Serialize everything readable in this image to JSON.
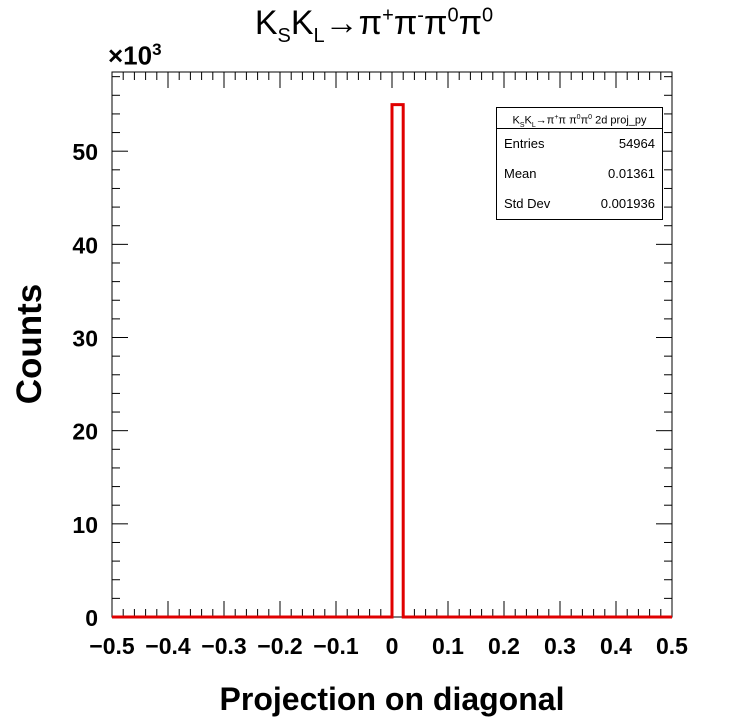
{
  "chart_data": {
    "type": "bar",
    "title": "K_S K_L → π⁺π⁻π⁰π⁰",
    "title_parts": {
      "k": "K",
      "s": "S",
      "l": "L",
      "rest": "→π",
      "plus": "+",
      "pi2": "π",
      "minus": "-",
      "pi3": "π",
      "zero1": "0",
      "pi4": "π",
      "zero2": "0"
    },
    "xlabel": "Projection on diagonal",
    "ylabel": "Counts",
    "y_exponent": {
      "prefix": "×10",
      "power": "3"
    },
    "xlim": [
      -0.5,
      0.5
    ],
    "ylim": [
      0,
      58.5
    ],
    "x_ticks": [
      "−0.5",
      "−0.4",
      "−0.3",
      "−0.2",
      "−0.1",
      "0",
      "0.1",
      "0.2",
      "0.3",
      "0.4",
      "0.5"
    ],
    "x_tick_values": [
      -0.5,
      -0.4,
      -0.3,
      -0.2,
      -0.1,
      0,
      0.1,
      0.2,
      0.3,
      0.4,
      0.5
    ],
    "y_ticks": [
      "0",
      "10",
      "20",
      "30",
      "40",
      "50"
    ],
    "y_tick_values": [
      0,
      10,
      20,
      30,
      40,
      50
    ],
    "bins": [
      {
        "x0": 0.0,
        "x1": 0.02,
        "value": 55.0
      }
    ],
    "line_color": "#e00000",
    "stats_box": {
      "header": {
        "k": "K",
        "s": "S",
        "k2": "K",
        "l": "L",
        "arrow": "→π",
        "plus": "+",
        "pi": "π π",
        "z1": "0",
        "pi2": "π",
        "z2": "0",
        "suffix": " 2d proj_py"
      },
      "rows": [
        {
          "label": "Entries",
          "value": "54964"
        },
        {
          "label": "Mean",
          "value": "0.01361"
        },
        {
          "label": "Std Dev",
          "value": "0.001936"
        }
      ]
    }
  }
}
